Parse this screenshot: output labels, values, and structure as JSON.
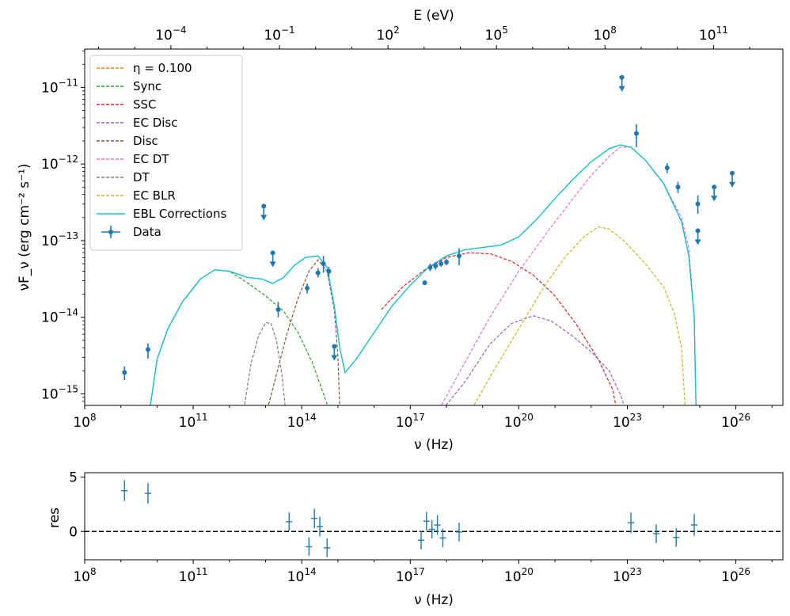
{
  "chart_data": [
    {
      "type": "line",
      "name": "sed-panel",
      "xlabel": "ν  (Hz)",
      "ylabel": "νF_ν   (erg cm⁻²  s⁻¹)",
      "top_xlabel": "E (eV)",
      "xscale": "log",
      "yscale": "log",
      "xlim_log10": [
        8,
        27.3
      ],
      "ylim_log10": [
        -15.15,
        -10.5
      ],
      "x_ticks_log10": [
        8,
        11,
        14,
        17,
        20,
        23,
        26
      ],
      "x_tick_labels": [
        "10^8",
        "10^11",
        "10^14",
        "10^17",
        "10^20",
        "10^23",
        "10^26"
      ],
      "y_ticks_log10": [
        -15,
        -14,
        -13,
        -12,
        -11
      ],
      "y_tick_labels": [
        "10^−15",
        "10^−14",
        "10^−13",
        "10^−12",
        "10^−11"
      ],
      "top_ticks_log10_eV": [
        -4,
        -1,
        2,
        5,
        8,
        11
      ],
      "top_tick_labels": [
        "10^−4",
        "10^−1",
        "10^2",
        "10^5",
        "10^8",
        "10^11"
      ],
      "legend_position": "top-left",
      "series": [
        {
          "name": "η = 0.100",
          "color": "#ff7f0e",
          "style": "dashed",
          "points": []
        },
        {
          "name": "Sync",
          "color": "#2ca02c",
          "style": "dashed",
          "points": [
            [
              9.8,
              -15.2
            ],
            [
              10.0,
              -14.55
            ],
            [
              10.3,
              -14.15
            ],
            [
              10.7,
              -13.8
            ],
            [
              11.2,
              -13.5
            ],
            [
              11.6,
              -13.38
            ],
            [
              12.0,
              -13.4
            ],
            [
              12.5,
              -13.55
            ],
            [
              13.0,
              -13.72
            ],
            [
              13.5,
              -13.92
            ],
            [
              13.9,
              -14.2
            ],
            [
              14.3,
              -14.6
            ],
            [
              14.6,
              -15.0
            ],
            [
              14.75,
              -15.2
            ]
          ]
        },
        {
          "name": "SSC",
          "color": "#d62728",
          "style": "dashed",
          "points": [
            [
              16.2,
              -13.9
            ],
            [
              16.8,
              -13.6
            ],
            [
              17.4,
              -13.38
            ],
            [
              18.0,
              -13.22
            ],
            [
              18.6,
              -13.16
            ],
            [
              19.2,
              -13.17
            ],
            [
              19.8,
              -13.27
            ],
            [
              20.4,
              -13.45
            ],
            [
              21.0,
              -13.72
            ],
            [
              21.6,
              -14.1
            ],
            [
              22.2,
              -14.55
            ],
            [
              22.6,
              -14.95
            ],
            [
              22.7,
              -15.2
            ]
          ]
        },
        {
          "name": "EC Disc",
          "color": "#9467bd",
          "style": "dashed",
          "points": [
            [
              17.9,
              -15.2
            ],
            [
              18.5,
              -14.85
            ],
            [
              19.2,
              -14.35
            ],
            [
              19.8,
              -14.08
            ],
            [
              20.4,
              -13.98
            ],
            [
              20.9,
              -14.05
            ],
            [
              21.5,
              -14.25
            ],
            [
              22.0,
              -14.45
            ],
            [
              22.5,
              -14.7
            ],
            [
              22.8,
              -15.0
            ],
            [
              22.95,
              -15.2
            ]
          ]
        },
        {
          "name": "Disc",
          "color": "#8c564b",
          "style": "dashed",
          "points": [
            [
              13.05,
              -15.2
            ],
            [
              13.3,
              -14.75
            ],
            [
              13.6,
              -14.2
            ],
            [
              13.9,
              -13.75
            ],
            [
              14.2,
              -13.4
            ],
            [
              14.45,
              -13.25
            ],
            [
              14.7,
              -13.4
            ],
            [
              14.9,
              -13.9
            ],
            [
              15.0,
              -14.5
            ],
            [
              15.05,
              -15.2
            ]
          ]
        },
        {
          "name": "EC DT",
          "color": "#e377c2",
          "style": "dashed",
          "points": [
            [
              17.8,
              -15.2
            ],
            [
              18.5,
              -14.6
            ],
            [
              19.2,
              -14.0
            ],
            [
              20.0,
              -13.4
            ],
            [
              20.8,
              -12.88
            ],
            [
              21.5,
              -12.45
            ],
            [
              22.0,
              -12.15
            ],
            [
              22.5,
              -11.9
            ],
            [
              22.8,
              -11.78
            ],
            [
              23.1,
              -11.78
            ],
            [
              23.5,
              -11.95
            ],
            [
              24.0,
              -12.25
            ],
            [
              24.5,
              -12.7
            ],
            [
              24.7,
              -13.1
            ],
            [
              24.85,
              -14.0
            ],
            [
              24.9,
              -15.2
            ]
          ]
        },
        {
          "name": "DT",
          "color": "#7f7f7f",
          "style": "dashed",
          "points": [
            [
              12.4,
              -15.2
            ],
            [
              12.6,
              -14.6
            ],
            [
              12.8,
              -14.25
            ],
            [
              13.0,
              -14.07
            ],
            [
              13.15,
              -14.08
            ],
            [
              13.3,
              -14.3
            ],
            [
              13.45,
              -14.75
            ],
            [
              13.55,
              -15.2
            ]
          ]
        },
        {
          "name": "EC BLR",
          "color": "#bcbd22",
          "style": "dashed",
          "points": [
            [
              18.7,
              -15.2
            ],
            [
              19.3,
              -14.7
            ],
            [
              20.0,
              -14.15
            ],
            [
              20.7,
              -13.6
            ],
            [
              21.3,
              -13.2
            ],
            [
              21.8,
              -12.95
            ],
            [
              22.2,
              -12.82
            ],
            [
              22.5,
              -12.85
            ],
            [
              22.9,
              -13.0
            ],
            [
              23.5,
              -13.3
            ],
            [
              24.0,
              -13.6
            ],
            [
              24.3,
              -13.95
            ],
            [
              24.5,
              -14.4
            ],
            [
              24.6,
              -15.2
            ]
          ]
        },
        {
          "name": "EBL Corrections",
          "color": "#17becf",
          "style": "solid",
          "points": [
            [
              9.8,
              -15.2
            ],
            [
              10.0,
              -14.55
            ],
            [
              10.3,
              -14.15
            ],
            [
              10.7,
              -13.8
            ],
            [
              11.2,
              -13.5
            ],
            [
              11.6,
              -13.38
            ],
            [
              12.0,
              -13.4
            ],
            [
              12.5,
              -13.48
            ],
            [
              12.9,
              -13.5
            ],
            [
              13.2,
              -13.56
            ],
            [
              13.5,
              -13.48
            ],
            [
              13.8,
              -13.32
            ],
            [
              14.1,
              -13.22
            ],
            [
              14.45,
              -13.2
            ],
            [
              14.7,
              -13.35
            ],
            [
              14.9,
              -13.85
            ],
            [
              15.05,
              -14.4
            ],
            [
              15.2,
              -14.72
            ],
            [
              15.5,
              -14.55
            ],
            [
              16.0,
              -14.2
            ],
            [
              16.5,
              -13.85
            ],
            [
              17.0,
              -13.58
            ],
            [
              17.5,
              -13.35
            ],
            [
              18.0,
              -13.2
            ],
            [
              18.5,
              -13.12
            ],
            [
              19.0,
              -13.09
            ],
            [
              19.5,
              -13.06
            ],
            [
              20.0,
              -12.95
            ],
            [
              20.5,
              -12.72
            ],
            [
              21.0,
              -12.45
            ],
            [
              21.5,
              -12.2
            ],
            [
              22.0,
              -11.97
            ],
            [
              22.5,
              -11.8
            ],
            [
              22.8,
              -11.75
            ],
            [
              23.1,
              -11.78
            ],
            [
              23.5,
              -11.95
            ],
            [
              24.0,
              -12.25
            ],
            [
              24.5,
              -12.75
            ],
            [
              24.7,
              -13.2
            ],
            [
              24.85,
              -14.0
            ],
            [
              24.9,
              -15.2
            ]
          ]
        }
      ],
      "data_series": {
        "name": "Data",
        "color": "#1f77b4",
        "points": [
          {
            "x": 9.1,
            "y": -14.72,
            "up": 0.08,
            "down": 0.1
          },
          {
            "x": 9.75,
            "y": -14.42,
            "up": 0.08,
            "down": 0.12
          },
          {
            "x": 13.35,
            "y": -13.9,
            "up": 0.1,
            "down": 0.1
          },
          {
            "x": 14.15,
            "y": -13.62,
            "up": 0.06,
            "down": 0.07
          },
          {
            "x": 14.45,
            "y": -13.42,
            "up": 0.06,
            "down": 0.06
          },
          {
            "x": 14.6,
            "y": -13.3,
            "up": 0.1,
            "down": 0.12
          },
          {
            "x": 14.75,
            "y": -13.4,
            "up": 0.06,
            "down": 0.08
          },
          {
            "x": 17.4,
            "y": -13.55,
            "up": 0.03,
            "down": 0.03
          },
          {
            "x": 17.55,
            "y": -13.35,
            "up": 0.05,
            "down": 0.05
          },
          {
            "x": 17.7,
            "y": -13.33,
            "up": 0.05,
            "down": 0.05
          },
          {
            "x": 17.85,
            "y": -13.3,
            "up": 0.04,
            "down": 0.04
          },
          {
            "x": 18.0,
            "y": -13.28,
            "up": 0.04,
            "down": 0.04
          },
          {
            "x": 18.35,
            "y": -13.2,
            "up": 0.1,
            "down": 0.12
          },
          {
            "x": 23.25,
            "y": -11.6,
            "up": 0.12,
            "down": 0.18
          },
          {
            "x": 24.1,
            "y": -12.05,
            "up": 0.06,
            "down": 0.07
          },
          {
            "x": 24.4,
            "y": -12.3,
            "up": 0.07,
            "down": 0.08
          },
          {
            "x": 24.95,
            "y": -12.52,
            "up": 0.11,
            "down": 0.13
          }
        ],
        "xerr_points": [
          {
            "x": 22.84,
            "y": -10.86,
            "dx": 0.06
          }
        ],
        "upper_limits": [
          {
            "x": 12.95,
            "y": -12.55
          },
          {
            "x": 13.2,
            "y": -13.16
          },
          {
            "x": 14.9,
            "y": -14.38
          },
          {
            "x": 22.85,
            "y": -10.87
          },
          {
            "x": 24.95,
            "y": -12.87
          },
          {
            "x": 25.4,
            "y": -12.3
          },
          {
            "x": 25.9,
            "y": -12.12
          }
        ]
      }
    },
    {
      "type": "scatter",
      "name": "residual-panel",
      "xlabel": "ν  (Hz)",
      "ylabel": "res",
      "xscale": "log",
      "xlim_log10": [
        8,
        27.3
      ],
      "ylim": [
        -2.6,
        5.4
      ],
      "x_ticks_log10": [
        8,
        11,
        14,
        17,
        20,
        23,
        26
      ],
      "x_tick_labels": [
        "10^8",
        "10^11",
        "10^14",
        "10^17",
        "10^20",
        "10^23",
        "10^26"
      ],
      "y_ticks": [
        5,
        0
      ],
      "y_tick_labels": [
        "5",
        "0"
      ],
      "reference_line": 0,
      "points": [
        {
          "x": 9.1,
          "y": 3.75,
          "err": 0.95
        },
        {
          "x": 9.75,
          "y": 3.5,
          "err": 0.95
        },
        {
          "x": 13.65,
          "y": 0.9,
          "err": 0.85
        },
        {
          "x": 14.2,
          "y": -1.4,
          "err": 0.85
        },
        {
          "x": 14.35,
          "y": 1.2,
          "err": 0.9
        },
        {
          "x": 14.5,
          "y": 0.45,
          "err": 0.9
        },
        {
          "x": 14.7,
          "y": -1.5,
          "err": 0.85
        },
        {
          "x": 17.3,
          "y": -0.8,
          "err": 0.85
        },
        {
          "x": 17.45,
          "y": 0.95,
          "err": 0.85
        },
        {
          "x": 17.6,
          "y": 0.2,
          "err": 0.85
        },
        {
          "x": 17.75,
          "y": 0.6,
          "err": 0.9
        },
        {
          "x": 17.9,
          "y": -0.6,
          "err": 0.85
        },
        {
          "x": 18.35,
          "y": -0.05,
          "err": 0.85
        },
        {
          "x": 23.1,
          "y": 0.8,
          "err": 0.95
        },
        {
          "x": 23.8,
          "y": -0.2,
          "err": 0.85
        },
        {
          "x": 24.35,
          "y": -0.55,
          "err": 0.85
        },
        {
          "x": 24.85,
          "y": 0.6,
          "err": 1.0
        }
      ]
    }
  ]
}
